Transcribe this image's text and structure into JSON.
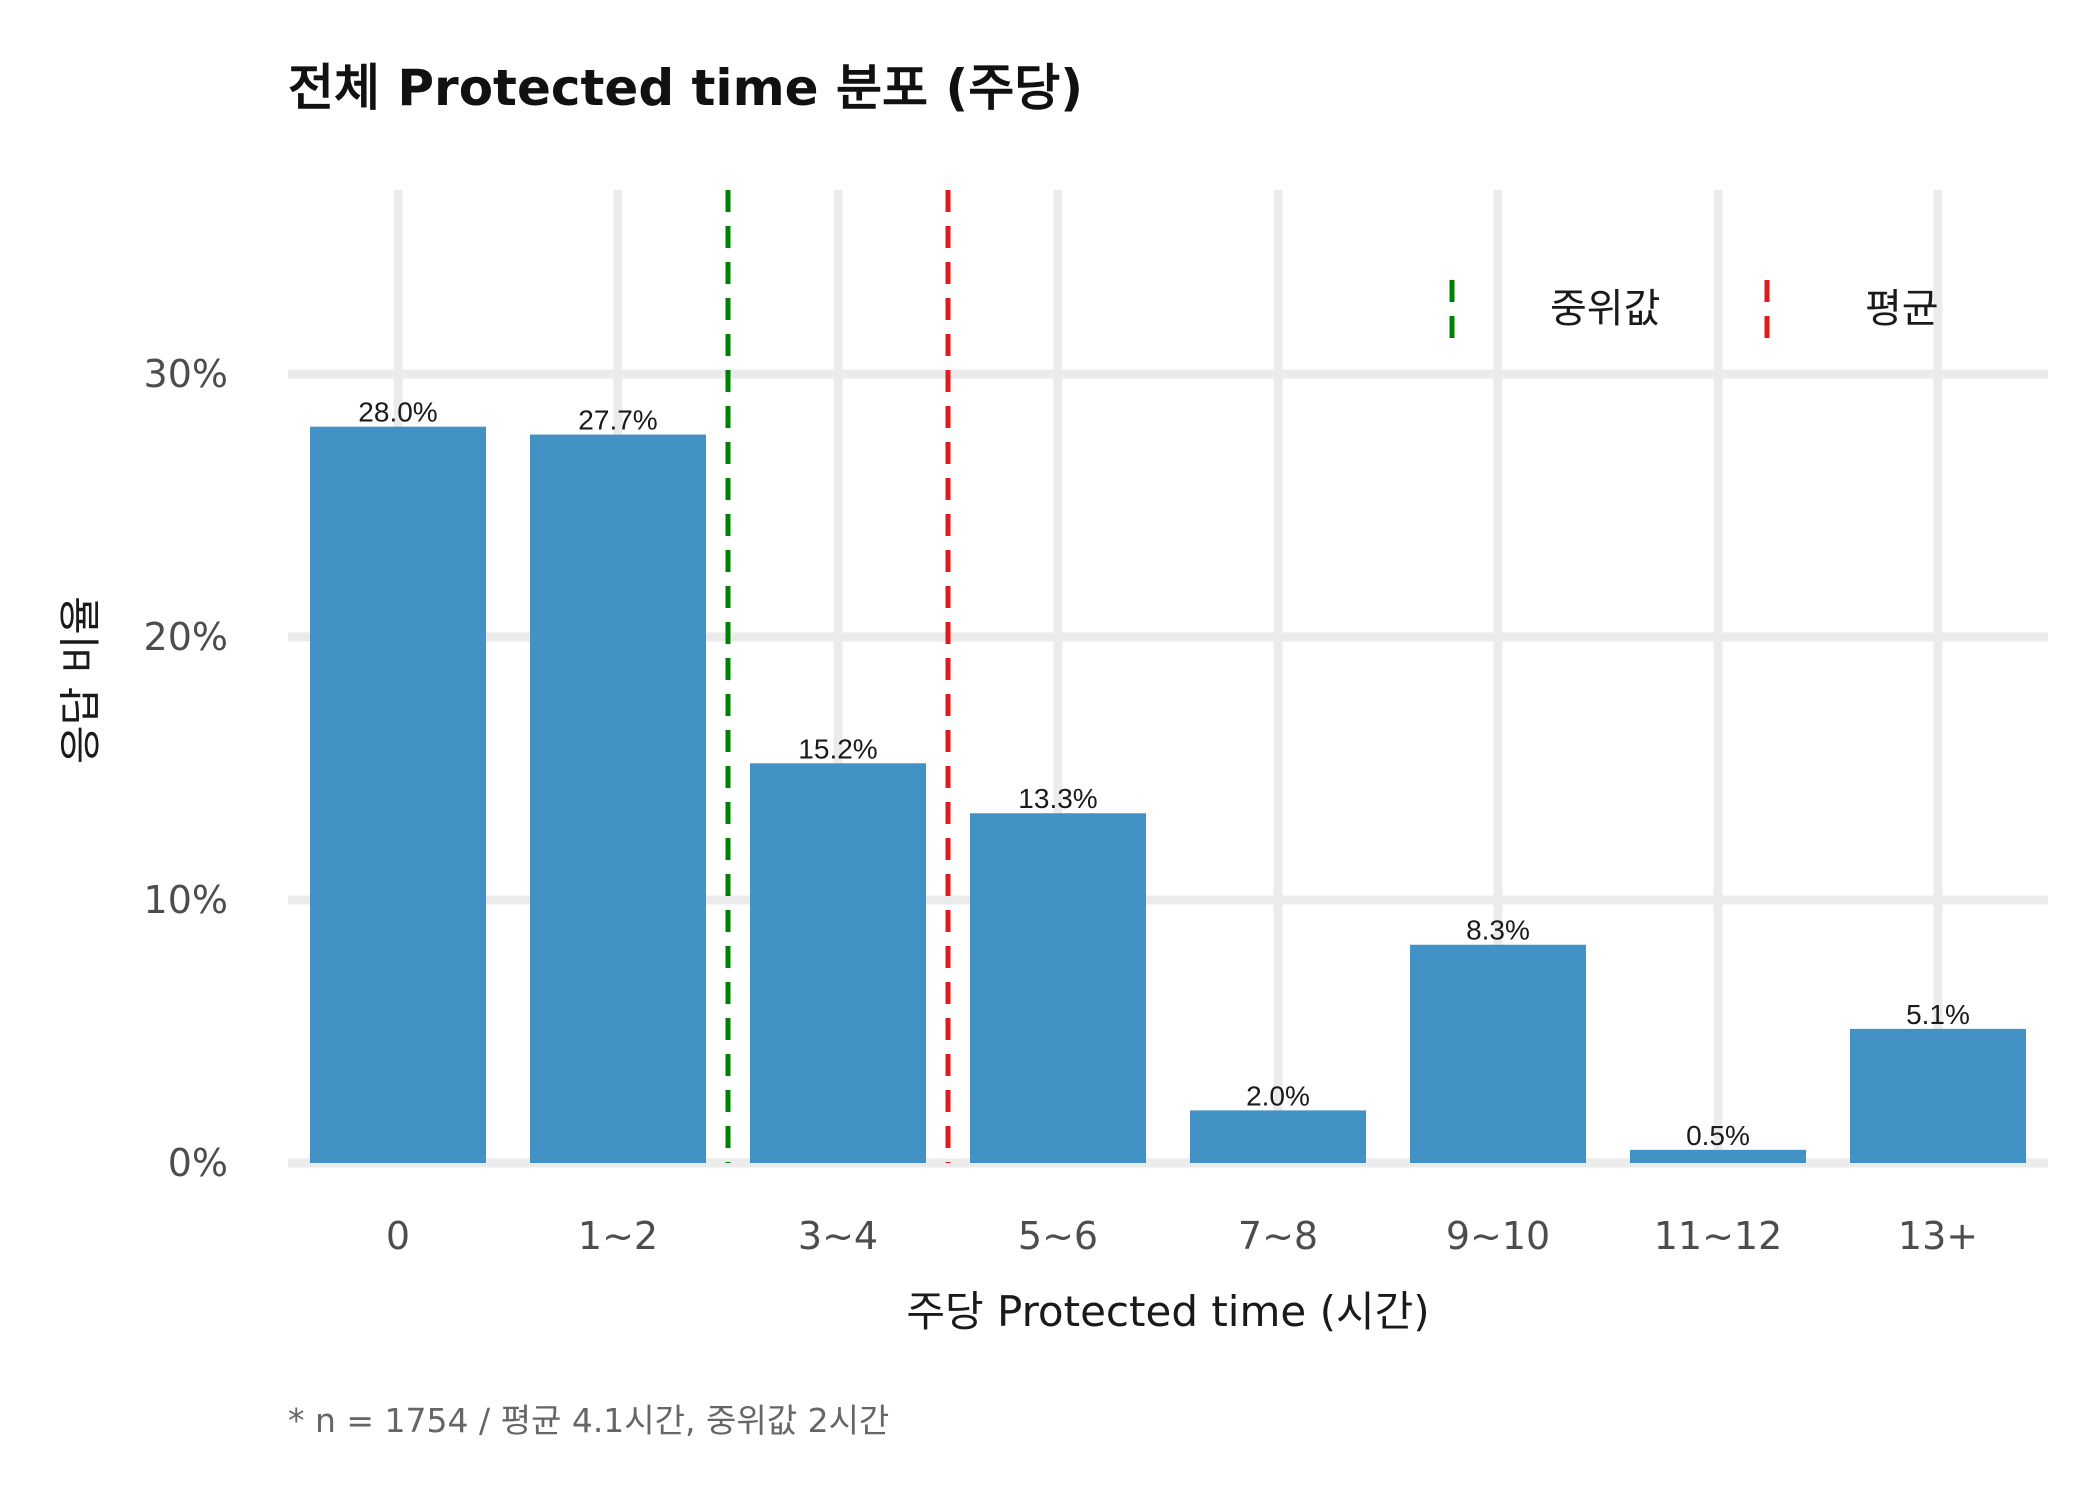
{
  "chart_data": {
    "type": "bar",
    "title": "전체 Protected time 분포 (주당)",
    "xlabel": "주당 Protected time (시간)",
    "ylabel": "응답 비율",
    "categories": [
      "0",
      "1~2",
      "3~4",
      "5~6",
      "7~8",
      "9~10",
      "11~12",
      "13+"
    ],
    "values": [
      28.0,
      27.7,
      15.2,
      13.3,
      2.0,
      8.3,
      0.5,
      5.1
    ],
    "value_labels": [
      "28.0%",
      "27.7%",
      "15.2%",
      "13.3%",
      "2.0%",
      "8.3%",
      "0.5%",
      "5.1%"
    ],
    "ylim": [
      0,
      37
    ],
    "yticks": [
      0,
      10,
      20,
      30
    ],
    "ytick_labels": [
      "0%",
      "10%",
      "20%",
      "30%"
    ],
    "grid": true,
    "bar_color": "#4292c6",
    "reference_lines": [
      {
        "name": "중위값",
        "x_category_index": 1.5,
        "color": "#008000",
        "style": "dashed"
      },
      {
        "name": "평균",
        "x_category_index": 2.5,
        "color": "#e31a1c",
        "style": "dashed"
      }
    ],
    "legend": {
      "placement": "top-right",
      "entries": [
        "중위값",
        "평균"
      ]
    },
    "caption": "* n = 1754 / 평균 4.1시간, 중위값 2시간"
  }
}
